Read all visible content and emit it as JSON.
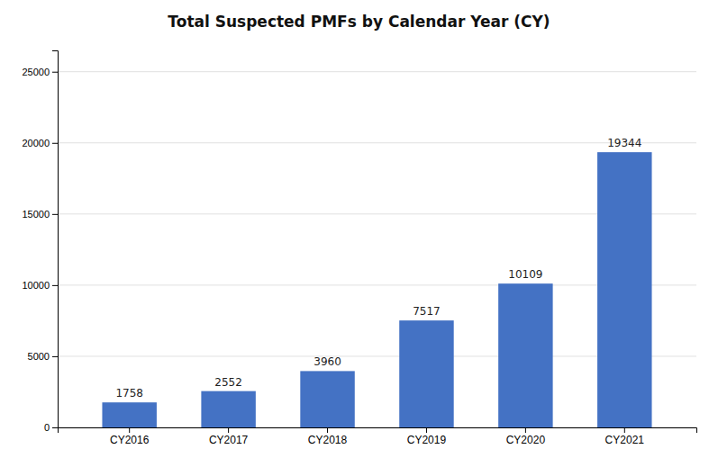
{
  "chart_data": {
    "type": "bar",
    "title": "Total Suspected PMFs by Calendar Year (CY)",
    "categories": [
      "CY2016",
      "CY2017",
      "CY2018",
      "CY2019",
      "CY2020",
      "CY2021"
    ],
    "values": [
      1758,
      2552,
      3960,
      7517,
      10109,
      19344
    ],
    "color": "#4472C4",
    "ylim": [
      0,
      26500
    ],
    "yticks": [
      0,
      5000,
      10000,
      15000,
      20000,
      25000
    ],
    "grid": true,
    "data_labels": true
  }
}
